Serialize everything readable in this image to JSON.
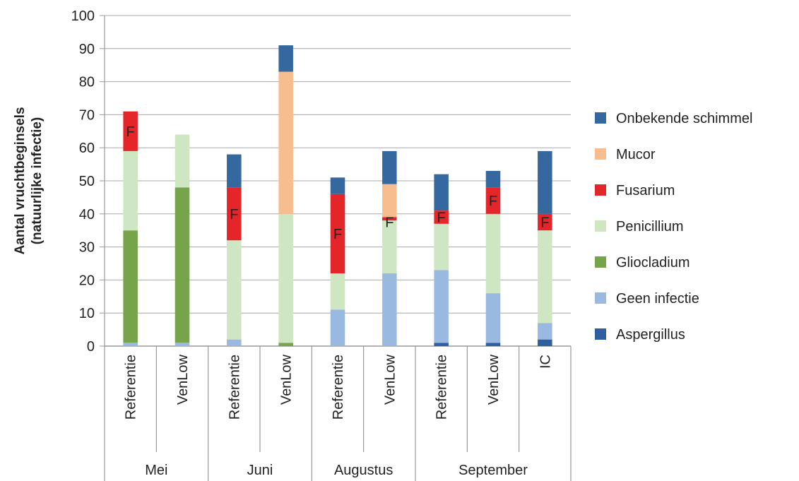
{
  "chart_data": {
    "type": "bar",
    "stacked": true,
    "ylabel": [
      "Aantal vruchtbeginsels",
      "(natuurlijke infectie)"
    ],
    "ylim": [
      0,
      100
    ],
    "yticks": [
      0,
      10,
      20,
      30,
      40,
      50,
      60,
      70,
      80,
      90,
      100
    ],
    "grid": true,
    "legend_position": "right",
    "categories": [
      "Referentie",
      "VenLow",
      "Referentie",
      "VenLow",
      "Referentie",
      "VenLow",
      "Referentie",
      "VenLow",
      "IC"
    ],
    "groups": [
      {
        "label": "Mei",
        "count": 2
      },
      {
        "label": "Juni",
        "count": 2
      },
      {
        "label": "Augustus",
        "count": 2
      },
      {
        "label": "September",
        "count": 3
      }
    ],
    "series": [
      {
        "name": "Aspergillus",
        "color": "#2e5fa0",
        "values": [
          0,
          0,
          0,
          0,
          0,
          0,
          1,
          1,
          2
        ]
      },
      {
        "name": "Geen infectie",
        "color": "#9ab9e0",
        "values": [
          1,
          1,
          2,
          0,
          11,
          22,
          22,
          15,
          5
        ]
      },
      {
        "name": "Gliocladium",
        "color": "#77a34a",
        "values": [
          34,
          47,
          0,
          1,
          0,
          0,
          0,
          0,
          0
        ]
      },
      {
        "name": "Penicillium",
        "color": "#cfe6c2",
        "values": [
          24,
          16,
          30,
          39,
          11,
          16,
          14,
          24,
          28
        ]
      },
      {
        "name": "Fusarium",
        "color": "#e4262a",
        "values": [
          12,
          0,
          16,
          0,
          24,
          1,
          4,
          8,
          5
        ]
      },
      {
        "name": "Mucor",
        "color": "#f8bd8f",
        "values": [
          0,
          0,
          0,
          43,
          0,
          10,
          0,
          0,
          0
        ]
      },
      {
        "name": "Onbekende schimmel",
        "color": "#35689e",
        "values": [
          0,
          0,
          10,
          8,
          5,
          10,
          11,
          5,
          19
        ]
      }
    ],
    "annotations": [
      {
        "text": "F",
        "category_index": 0,
        "series": "Fusarium"
      },
      {
        "text": "F",
        "category_index": 2,
        "series": "Fusarium"
      },
      {
        "text": "F",
        "category_index": 4,
        "series": "Fusarium"
      },
      {
        "text": "F",
        "category_index": 5,
        "series": "Fusarium"
      },
      {
        "text": "F",
        "category_index": 6,
        "series": "Fusarium"
      },
      {
        "text": "F",
        "category_index": 7,
        "series": "Fusarium"
      },
      {
        "text": "F",
        "category_index": 8,
        "series": "Fusarium"
      }
    ],
    "legend_order": [
      "Onbekende schimmel",
      "Mucor",
      "Fusarium",
      "Penicillium",
      "Gliocladium",
      "Geen infectie",
      "Aspergillus"
    ]
  }
}
